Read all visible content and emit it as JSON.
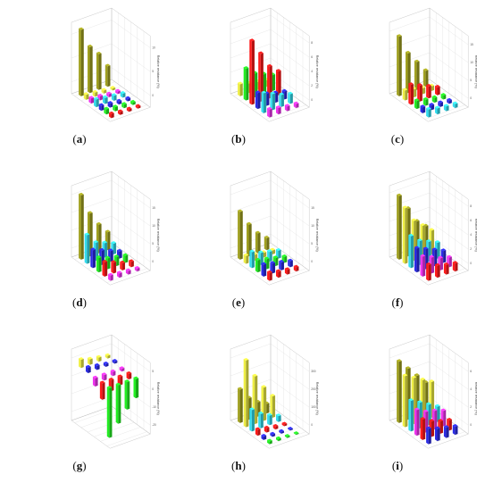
{
  "figure": {
    "panels": [
      {
        "id": "a",
        "label_prefix": "(",
        "label_letter": "a",
        "label_suffix": ")"
      },
      {
        "id": "b",
        "label_prefix": "(",
        "label_letter": "b",
        "label_suffix": ")"
      },
      {
        "id": "c",
        "label_prefix": "(",
        "label_letter": "c",
        "label_suffix": ")"
      },
      {
        "id": "d",
        "label_prefix": "(",
        "label_letter": "d",
        "label_suffix": ")"
      },
      {
        "id": "e",
        "label_prefix": "(",
        "label_letter": "e",
        "label_suffix": ")"
      },
      {
        "id": "f",
        "label_prefix": "(",
        "label_letter": "f",
        "label_suffix": ")"
      },
      {
        "id": "g",
        "label_prefix": "(",
        "label_letter": "g",
        "label_suffix": ")"
      },
      {
        "id": "h",
        "label_prefix": "(",
        "label_letter": "h",
        "label_suffix": ")"
      },
      {
        "id": "i",
        "label_prefix": "(",
        "label_letter": "i",
        "label_suffix": ")"
      }
    ]
  },
  "colors": [
    "#ff1a1a",
    "#22ee22",
    "#2b2be6",
    "#33ddee",
    "#ee33ee",
    "#eeee44",
    "#cccccc",
    "#999999",
    "#666666",
    "#a0a020"
  ],
  "chart_data": [
    {
      "panel": "a",
      "type": "bar",
      "zlabel": "Relative resistance (%)",
      "zticks": [
        "0",
        "5",
        "10"
      ],
      "zlim": [
        0,
        14
      ],
      "rows": [
        {
          "color_index": 9,
          "values": [
            13,
            9,
            7,
            4
          ]
        },
        {
          "color_index": 5,
          "values": [
            1.0,
            0.8,
            0.6,
            0.4
          ]
        },
        {
          "color_index": 4,
          "values": [
            1.0,
            0.8,
            0.6,
            0.5
          ]
        },
        {
          "color_index": 3,
          "values": [
            1.5,
            1.2,
            1.0,
            0.8
          ]
        },
        {
          "color_index": 2,
          "values": [
            1.0,
            0.8,
            0.6,
            0.5
          ]
        },
        {
          "color_index": 1,
          "values": [
            1.0,
            0.8,
            0.7,
            0.5
          ]
        },
        {
          "color_index": 0,
          "values": [
            0.8,
            0.6,
            0.5,
            0.4
          ]
        }
      ]
    },
    {
      "panel": "b",
      "type": "bar",
      "zlabel": "Relative resistance (%)",
      "zticks": [
        "0",
        "2",
        "4",
        "6",
        "8"
      ],
      "zlim": [
        0,
        9
      ],
      "rows": [
        {
          "color_index": 5,
          "values": [
            1.5,
            1.2,
            1.0,
            0.8
          ]
        },
        {
          "color_index": 1,
          "values": [
            4,
            3,
            2.5,
            2
          ]
        },
        {
          "color_index": 0,
          "values": [
            8,
            6,
            4,
            3
          ]
        },
        {
          "color_index": 2,
          "values": [
            2,
            1.5,
            1.2,
            1.0
          ]
        },
        {
          "color_index": 3,
          "values": [
            2.5,
            2,
            1.5,
            1.2
          ]
        },
        {
          "color_index": 4,
          "values": [
            1.0,
            0.8,
            0.6,
            0.5
          ]
        }
      ]
    },
    {
      "panel": "c",
      "type": "bar",
      "zlabel": "Relative resistance (%)",
      "zticks": [
        "0",
        "5",
        "10",
        "15"
      ],
      "zlim": [
        0,
        18
      ],
      "rows": [
        {
          "color_index": 9,
          "values": [
            15,
            10,
            7,
            4
          ]
        },
        {
          "color_index": 5,
          "values": [
            2.5,
            2,
            1.5,
            1.2
          ]
        },
        {
          "color_index": 0,
          "values": [
            5,
            4,
            3,
            2
          ]
        },
        {
          "color_index": 1,
          "values": [
            2,
            1.5,
            1.2,
            1.0
          ]
        },
        {
          "color_index": 2,
          "values": [
            1.5,
            1.2,
            1.0,
            0.8
          ]
        },
        {
          "color_index": 3,
          "values": [
            2,
            1.5,
            1.2,
            1.0
          ]
        }
      ]
    },
    {
      "panel": "d",
      "type": "bar",
      "zlabel": "Relative resistance (%)",
      "zticks": [
        "0",
        "5",
        "10",
        "15"
      ],
      "zlim": [
        0,
        20
      ],
      "rows": [
        {
          "color_index": 9,
          "values": [
            18,
            12,
            8,
            5
          ]
        },
        {
          "color_index": 3,
          "values": [
            8,
            5,
            4,
            3
          ]
        },
        {
          "color_index": 2,
          "values": [
            5,
            4,
            3,
            2
          ]
        },
        {
          "color_index": 1,
          "values": [
            4,
            3,
            2.5,
            2
          ]
        },
        {
          "color_index": 0,
          "values": [
            4,
            3,
            2,
            1.5
          ]
        },
        {
          "color_index": 4,
          "values": [
            1.5,
            1.2,
            1.0,
            0.8
          ]
        }
      ]
    },
    {
      "panel": "e",
      "type": "bar",
      "zlabel": "Relative resistance (%)",
      "zticks": [
        "0",
        "5",
        "10",
        "15"
      ],
      "zlim": [
        0,
        18
      ],
      "rows": [
        {
          "color_index": 9,
          "values": [
            12,
            8,
            5,
            3
          ]
        },
        {
          "color_index": 5,
          "values": [
            2,
            1.5,
            1.2,
            1.0
          ]
        },
        {
          "color_index": 3,
          "values": [
            4,
            3,
            2.5,
            2
          ]
        },
        {
          "color_index": 1,
          "values": [
            3,
            2.5,
            2,
            1.5
          ]
        },
        {
          "color_index": 2,
          "values": [
            3,
            2.5,
            2,
            1.5
          ]
        },
        {
          "color_index": 0,
          "values": [
            2,
            1.5,
            1.2,
            1.0
          ]
        }
      ]
    },
    {
      "panel": "f",
      "type": "bar",
      "zlabel": "Relative resistance (%)",
      "zticks": [
        "0",
        "2",
        "4",
        "6",
        "8"
      ],
      "zlim": [
        0,
        9
      ],
      "rows": [
        {
          "color_index": 9,
          "values": [
            8,
            6,
            4,
            3
          ]
        },
        {
          "color_index": 5,
          "values": [
            7,
            5,
            4,
            3
          ]
        },
        {
          "color_index": 3,
          "values": [
            4,
            3,
            2.5,
            2
          ]
        },
        {
          "color_index": 2,
          "values": [
            3,
            2.5,
            2,
            1.5
          ]
        },
        {
          "color_index": 4,
          "values": [
            2.5,
            2,
            1.5,
            1.2
          ]
        },
        {
          "color_index": 0,
          "values": [
            2,
            1.5,
            1.2,
            1.0
          ]
        }
      ]
    },
    {
      "panel": "g",
      "type": "bar",
      "zlabel": "Relative resistance (%)",
      "zticks": [
        "-20",
        "-10",
        "0",
        "5"
      ],
      "zlim": [
        -20,
        6
      ],
      "rows": [
        {
          "color_index": 5,
          "values": [
            3,
            2,
            1.5,
            1
          ]
        },
        {
          "color_index": 2,
          "values": [
            2,
            1.5,
            1.0,
            0.8
          ]
        },
        {
          "color_index": 4,
          "values": [
            -3,
            -2,
            -1.5,
            -1
          ]
        },
        {
          "color_index": 0,
          "values": [
            -6,
            -4,
            -3,
            -2
          ]
        },
        {
          "color_index": 1,
          "values": [
            -18,
            -14,
            -10,
            -7
          ]
        }
      ]
    },
    {
      "panel": "h",
      "type": "bar",
      "zlabel": "Relative resistance (%)",
      "zticks": [
        "0",
        "100",
        "200",
        "300"
      ],
      "zlim": [
        0,
        300
      ],
      "rows": [
        {
          "color_index": 9,
          "values": [
            140,
            90,
            60,
            40
          ]
        },
        {
          "color_index": 5,
          "values": [
            280,
            200,
            140,
            90
          ]
        },
        {
          "color_index": 3,
          "values": [
            90,
            60,
            40,
            25
          ]
        },
        {
          "color_index": 0,
          "values": [
            25,
            18,
            12,
            8
          ]
        },
        {
          "color_index": 2,
          "values": [
            15,
            10,
            8,
            5
          ]
        },
        {
          "color_index": 1,
          "values": [
            12,
            9,
            6,
            4
          ]
        }
      ]
    },
    {
      "panel": "i",
      "type": "bar",
      "zlabel": "Relative resistance (%)",
      "zticks": [
        "0",
        "2",
        "4",
        "6"
      ],
      "zlim": [
        0,
        7
      ],
      "rows": [
        {
          "color_index": 9,
          "values": [
            6,
            5,
            4,
            3
          ]
        },
        {
          "color_index": 5,
          "values": [
            5,
            4.5,
            4,
            3.5
          ]
        },
        {
          "color_index": 3,
          "values": [
            3,
            2.5,
            2,
            1.5
          ]
        },
        {
          "color_index": 4,
          "values": [
            2.5,
            2,
            1.8,
            1.5
          ]
        },
        {
          "color_index": 0,
          "values": [
            2,
            1.5,
            1.2,
            1.0
          ]
        },
        {
          "color_index": 2,
          "values": [
            1.5,
            1.2,
            1.0,
            0.8
          ]
        }
      ]
    }
  ]
}
